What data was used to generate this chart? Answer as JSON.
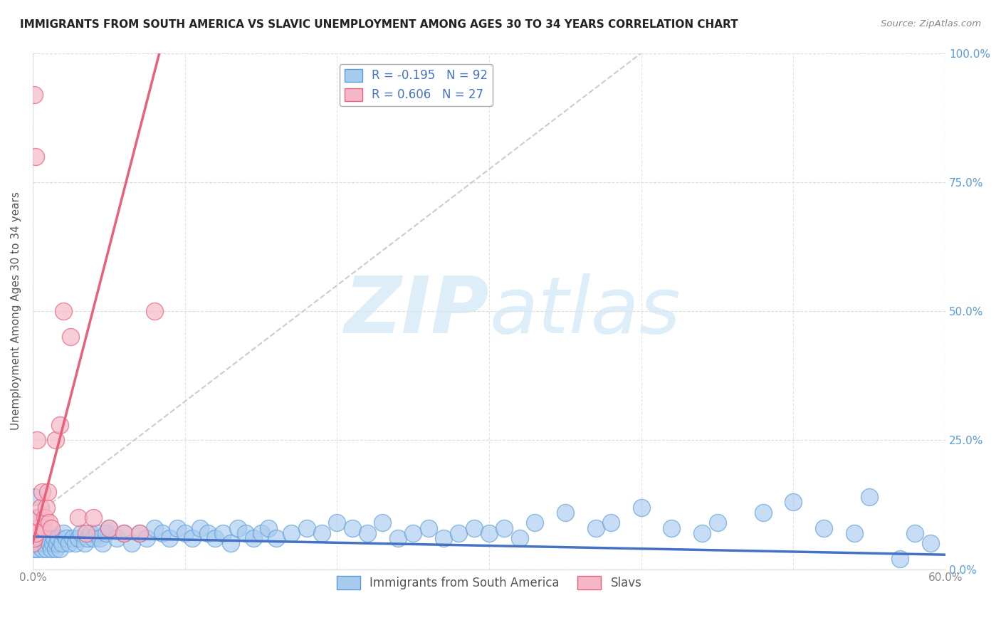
{
  "title": "IMMIGRANTS FROM SOUTH AMERICA VS SLAVIC UNEMPLOYMENT AMONG AGES 30 TO 34 YEARS CORRELATION CHART",
  "source": "Source: ZipAtlas.com",
  "ylabel": "Unemployment Among Ages 30 to 34 years",
  "xlim": [
    0.0,
    0.6
  ],
  "ylim": [
    0.0,
    1.0
  ],
  "xticks": [
    0.0,
    0.6
  ],
  "xtick_labels": [
    "0.0%",
    "60.0%"
  ],
  "yticks": [
    0.0,
    0.25,
    0.5,
    0.75,
    1.0
  ],
  "ytick_labels": [
    "",
    "25.0%",
    "50.0%",
    "75.0%",
    "100.0%"
  ],
  "ytick_labels_right": [
    "0.0%",
    "25.0%",
    "50.0%",
    "75.0%",
    "100.0%"
  ],
  "blue_R": -0.195,
  "blue_N": 92,
  "pink_R": 0.606,
  "pink_N": 27,
  "blue_color": "#A8CCF0",
  "pink_color": "#F5B8C8",
  "blue_edge_color": "#5B9BD5",
  "pink_edge_color": "#E8607A",
  "blue_line_color": "#4472C4",
  "pink_line_color": "#E8607A",
  "gray_line_color": "#CCCCCC",
  "watermark_color": "#DDEEF8",
  "legend_label_blue": "Immigrants from South America",
  "legend_label_pink": "Slavs",
  "background_color": "#FFFFFF",
  "grid_color": "#DDDDDD",
  "blue_scatter_x": [
    0.0,
    0.001,
    0.002,
    0.003,
    0.004,
    0.005,
    0.006,
    0.007,
    0.008,
    0.009,
    0.01,
    0.011,
    0.012,
    0.013,
    0.014,
    0.015,
    0.016,
    0.017,
    0.018,
    0.019,
    0.02,
    0.022,
    0.024,
    0.026,
    0.028,
    0.03,
    0.032,
    0.034,
    0.036,
    0.038,
    0.04,
    0.042,
    0.044,
    0.046,
    0.048,
    0.05,
    0.055,
    0.06,
    0.065,
    0.07,
    0.075,
    0.08,
    0.085,
    0.09,
    0.095,
    0.1,
    0.105,
    0.11,
    0.115,
    0.12,
    0.125,
    0.13,
    0.135,
    0.14,
    0.145,
    0.15,
    0.155,
    0.16,
    0.17,
    0.18,
    0.19,
    0.2,
    0.21,
    0.22,
    0.23,
    0.24,
    0.25,
    0.26,
    0.27,
    0.28,
    0.29,
    0.3,
    0.31,
    0.32,
    0.33,
    0.35,
    0.37,
    0.38,
    0.4,
    0.42,
    0.44,
    0.45,
    0.48,
    0.5,
    0.52,
    0.54,
    0.55,
    0.57,
    0.58,
    0.59,
    0.001,
    0.003
  ],
  "blue_scatter_y": [
    0.05,
    0.04,
    0.05,
    0.04,
    0.06,
    0.05,
    0.04,
    0.06,
    0.05,
    0.04,
    0.06,
    0.05,
    0.04,
    0.05,
    0.06,
    0.04,
    0.05,
    0.06,
    0.04,
    0.05,
    0.07,
    0.06,
    0.05,
    0.06,
    0.05,
    0.06,
    0.07,
    0.05,
    0.06,
    0.07,
    0.06,
    0.07,
    0.06,
    0.05,
    0.07,
    0.08,
    0.06,
    0.07,
    0.05,
    0.07,
    0.06,
    0.08,
    0.07,
    0.06,
    0.08,
    0.07,
    0.06,
    0.08,
    0.07,
    0.06,
    0.07,
    0.05,
    0.08,
    0.07,
    0.06,
    0.07,
    0.08,
    0.06,
    0.07,
    0.08,
    0.07,
    0.09,
    0.08,
    0.07,
    0.09,
    0.06,
    0.07,
    0.08,
    0.06,
    0.07,
    0.08,
    0.07,
    0.08,
    0.06,
    0.09,
    0.11,
    0.08,
    0.09,
    0.12,
    0.08,
    0.07,
    0.09,
    0.11,
    0.13,
    0.08,
    0.07,
    0.14,
    0.02,
    0.07,
    0.05,
    0.14,
    0.1
  ],
  "pink_scatter_x": [
    0.0,
    0.001,
    0.002,
    0.003,
    0.004,
    0.005,
    0.006,
    0.007,
    0.008,
    0.009,
    0.01,
    0.011,
    0.012,
    0.015,
    0.018,
    0.02,
    0.025,
    0.03,
    0.035,
    0.04,
    0.05,
    0.06,
    0.07,
    0.08,
    0.001,
    0.002,
    0.003
  ],
  "pink_scatter_y": [
    0.05,
    0.06,
    0.07,
    0.08,
    0.1,
    0.12,
    0.15,
    0.08,
    0.1,
    0.12,
    0.15,
    0.09,
    0.08,
    0.25,
    0.28,
    0.5,
    0.45,
    0.1,
    0.07,
    0.1,
    0.08,
    0.07,
    0.07,
    0.5,
    0.92,
    0.8,
    0.25
  ],
  "pink_line_x0": 0.0,
  "pink_line_y0": 0.05,
  "pink_line_x1": 0.085,
  "pink_line_y1": 1.02,
  "blue_line_x0": 0.0,
  "blue_line_y0": 0.063,
  "blue_line_x1": 0.6,
  "blue_line_y1": 0.028,
  "gray_line_x0": 0.0,
  "gray_line_y0": 0.1,
  "gray_line_x1": 0.4,
  "gray_line_y1": 1.0
}
